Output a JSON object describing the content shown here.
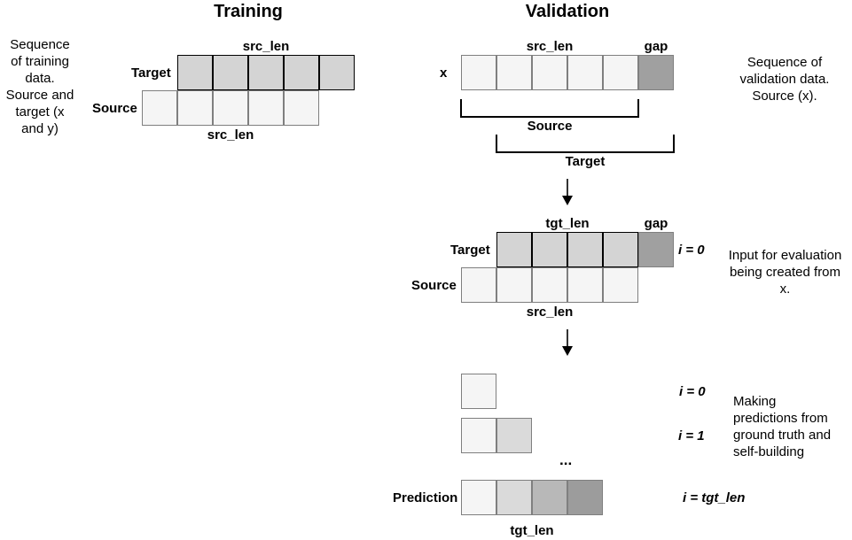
{
  "headings": {
    "training": "Training",
    "validation": "Validation"
  },
  "training": {
    "note": [
      "Sequence",
      "of training",
      "data.",
      "Source and",
      "target (x",
      "and y)"
    ],
    "src_len_top": "src_len",
    "src_len_bottom": "src_len",
    "target_label": "Target",
    "source_label": "Source"
  },
  "validation": {
    "row_x": {
      "x_label": "x",
      "src_len": "src_len",
      "gap": "gap",
      "note": [
        "Sequence of",
        "validation data.",
        "Source (x)."
      ]
    },
    "bracket_source_label": "Source",
    "bracket_target_label": "Target",
    "eval_input": {
      "tgt_len": "tgt_len",
      "gap": "gap",
      "target_label": "Target",
      "source_label": "Source",
      "src_len": "src_len",
      "i0": "i = 0",
      "note": [
        "Input for evaluation",
        "being created from",
        "x."
      ]
    },
    "predictions": {
      "i0": "i = 0",
      "i1": "i = 1",
      "dots": "...",
      "prediction_label": "Prediction",
      "i_tgt": "i = tgt_len",
      "tgt_len": "tgt_len",
      "note": [
        "Making",
        "predictions from",
        "ground truth and",
        "self-building"
      ]
    }
  },
  "colors": {
    "light": "#f5f5f5",
    "medium": "#d4d4d4",
    "dark": "#a0a0a0",
    "pred_2": "#dadada",
    "pred_3": "#b8b8b8",
    "pred_4": "#9c9c9c"
  }
}
